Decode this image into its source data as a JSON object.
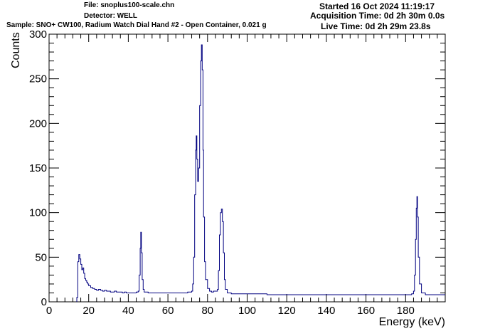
{
  "header": {
    "file": "File: snoplus100-scale.chn",
    "detector": "Detector: WELL",
    "sample": "Sample: SNO+ CW100, Radium Watch Dial Hand #2 - Open Container, 0.021 g",
    "started": "Started 16 Oct 2024 11:19:17",
    "acquisition": "Acquisition Time: 0d 2h 30m 0.0s",
    "live": "Live Time: 0d 2h 29m 23.8s"
  },
  "chart_data": {
    "type": "line",
    "title": "",
    "xlabel": "Energy (keV)",
    "ylabel": "Counts",
    "xlim": [
      0,
      200
    ],
    "ylim": [
      0,
      300
    ],
    "x_ticks": [
      "0",
      "20",
      "40",
      "60",
      "80",
      "100",
      "120",
      "140",
      "160",
      "180"
    ],
    "y_ticks": [
      "0",
      "50",
      "100",
      "150",
      "200",
      "250",
      "300"
    ],
    "grid": false,
    "legend": "none",
    "series": [
      {
        "color": "#000080",
        "points": [
          [
            14,
            5
          ],
          [
            14.5,
            45
          ],
          [
            15,
            53
          ],
          [
            15.5,
            48
          ],
          [
            16,
            42
          ],
          [
            16.5,
            36
          ],
          [
            17,
            38
          ],
          [
            17.5,
            32
          ],
          [
            18,
            26
          ],
          [
            18.5,
            24
          ],
          [
            19,
            22
          ],
          [
            19.5,
            20
          ],
          [
            20,
            18
          ],
          [
            21,
            16
          ],
          [
            22,
            15
          ],
          [
            23,
            14
          ],
          [
            24,
            13
          ],
          [
            25,
            14
          ],
          [
            26,
            13
          ],
          [
            27,
            12
          ],
          [
            28,
            13
          ],
          [
            29,
            12
          ],
          [
            30,
            12
          ],
          [
            31,
            11
          ],
          [
            32,
            11
          ],
          [
            33,
            12
          ],
          [
            34,
            11
          ],
          [
            35,
            11
          ],
          [
            36,
            11
          ],
          [
            37,
            10
          ],
          [
            38,
            11
          ],
          [
            39,
            10
          ],
          [
            40,
            10
          ],
          [
            41,
            10
          ],
          [
            42,
            10
          ],
          [
            43,
            10
          ],
          [
            44,
            11
          ],
          [
            45,
            12
          ],
          [
            45.5,
            30
          ],
          [
            46,
            60
          ],
          [
            46.3,
            78
          ],
          [
            46.6,
            55
          ],
          [
            47,
            25
          ],
          [
            47.5,
            14
          ],
          [
            48,
            11
          ],
          [
            50,
            10
          ],
          [
            52,
            10
          ],
          [
            54,
            10
          ],
          [
            56,
            10
          ],
          [
            58,
            10
          ],
          [
            60,
            10
          ],
          [
            62,
            10
          ],
          [
            64,
            10
          ],
          [
            66,
            10
          ],
          [
            68,
            10
          ],
          [
            70,
            11
          ],
          [
            71,
            11
          ],
          [
            72,
            12
          ],
          [
            72.5,
            20
          ],
          [
            73,
            50
          ],
          [
            73.5,
            120
          ],
          [
            74,
            170
          ],
          [
            74.3,
            186
          ],
          [
            74.6,
            160
          ],
          [
            75,
            135
          ],
          [
            75.5,
            150
          ],
          [
            76,
            220
          ],
          [
            76.5,
            270
          ],
          [
            76.9,
            288
          ],
          [
            77.3,
            260
          ],
          [
            77.7,
            170
          ],
          [
            78,
            95
          ],
          [
            78.5,
            45
          ],
          [
            79,
            25
          ],
          [
            80,
            15
          ],
          [
            81,
            12
          ],
          [
            82,
            11
          ],
          [
            83,
            12
          ],
          [
            84,
            12
          ],
          [
            85,
            14
          ],
          [
            85.5,
            35
          ],
          [
            86,
            75
          ],
          [
            86.5,
            100
          ],
          [
            87,
            104
          ],
          [
            87.5,
            90
          ],
          [
            88,
            55
          ],
          [
            88.5,
            25
          ],
          [
            89,
            14
          ],
          [
            90,
            10
          ],
          [
            92,
            9
          ],
          [
            94,
            9
          ],
          [
            96,
            9
          ],
          [
            98,
            9
          ],
          [
            100,
            9
          ],
          [
            105,
            9
          ],
          [
            110,
            8
          ],
          [
            115,
            8
          ],
          [
            120,
            8
          ],
          [
            125,
            8
          ],
          [
            130,
            8
          ],
          [
            135,
            8
          ],
          [
            140,
            8
          ],
          [
            145,
            8
          ],
          [
            150,
            8
          ],
          [
            155,
            8
          ],
          [
            160,
            8
          ],
          [
            165,
            8
          ],
          [
            170,
            8
          ],
          [
            175,
            8
          ],
          [
            180,
            8
          ],
          [
            183,
            9
          ],
          [
            184,
            12
          ],
          [
            184.5,
            30
          ],
          [
            185,
            70
          ],
          [
            185.4,
            105
          ],
          [
            185.7,
            118
          ],
          [
            186,
            95
          ],
          [
            186.4,
            50
          ],
          [
            187,
            20
          ],
          [
            188,
            10
          ],
          [
            190,
            8
          ],
          [
            192,
            8
          ],
          [
            194,
            8
          ],
          [
            196,
            8
          ],
          [
            198,
            8
          ],
          [
            200,
            8
          ]
        ]
      }
    ]
  }
}
